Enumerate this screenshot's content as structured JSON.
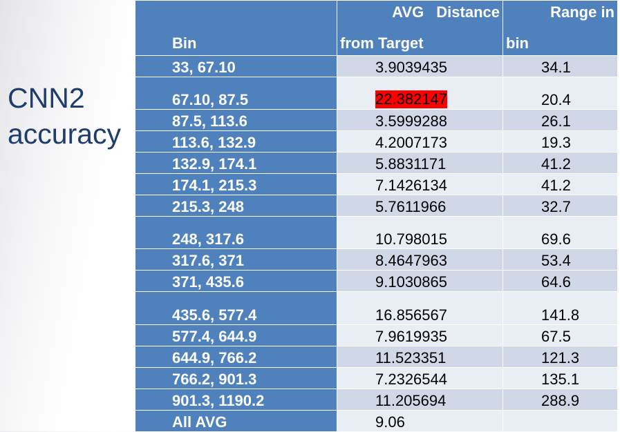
{
  "title": {
    "line1": "CNN2",
    "line2": "accuracy"
  },
  "table": {
    "headers": {
      "bin": "Bin",
      "avg_line1": "AVG Distance",
      "avg_line2": "from Target",
      "range_line1": "Range in",
      "range_line2": "bin"
    },
    "rows": [
      {
        "bin": "33, 67.10",
        "avg": "3.9039435",
        "range": "34.1"
      },
      {
        "bin": "67.10, 87.5",
        "avg": "22.382147",
        "range": "20.4"
      },
      {
        "bin": "87.5, 113.6",
        "avg": "3.5999288",
        "range": "26.1"
      },
      {
        "bin": "113.6, 132.9",
        "avg": "4.2007173",
        "range": "19.3"
      },
      {
        "bin": "132.9, 174.1",
        "avg": "5.8831171",
        "range": "41.2"
      },
      {
        "bin": "174.1, 215.3",
        "avg": "7.1426134",
        "range": "41.2"
      },
      {
        "bin": "215.3, 248",
        "avg": "5.7611966",
        "range": "32.7"
      },
      {
        "bin": "248, 317.6",
        "avg": "10.798015",
        "range": "69.6"
      },
      {
        "bin": "317.6, 371",
        "avg": "8.4647963",
        "range": "53.4"
      },
      {
        "bin": "371, 435.6",
        "avg": "9.1030865",
        "range": "64.6"
      },
      {
        "bin": "435.6, 577.4",
        "avg": "16.856567",
        "range": "141.8"
      },
      {
        "bin": "577.4, 644.9",
        "avg": "7.9619935",
        "range": "67.5"
      },
      {
        "bin": "644.9, 766.2",
        "avg": "11.523351",
        "range": "121.3"
      },
      {
        "bin": "766.2, 901.3",
        "avg": "7.2326544",
        "range": "135.1"
      },
      {
        "bin": "901.3, 1190.2",
        "avg": "11.205694",
        "range": "288.9"
      },
      {
        "bin": "All AVG",
        "avg": "9.06",
        "range": ""
      }
    ]
  },
  "colors": {
    "header_bg": "#4f81bd",
    "row_band_dark": "#d0d8e8",
    "row_band_light": "#e9edf4",
    "highlight": "#ff0000",
    "title_text": "#1f3c6e"
  }
}
